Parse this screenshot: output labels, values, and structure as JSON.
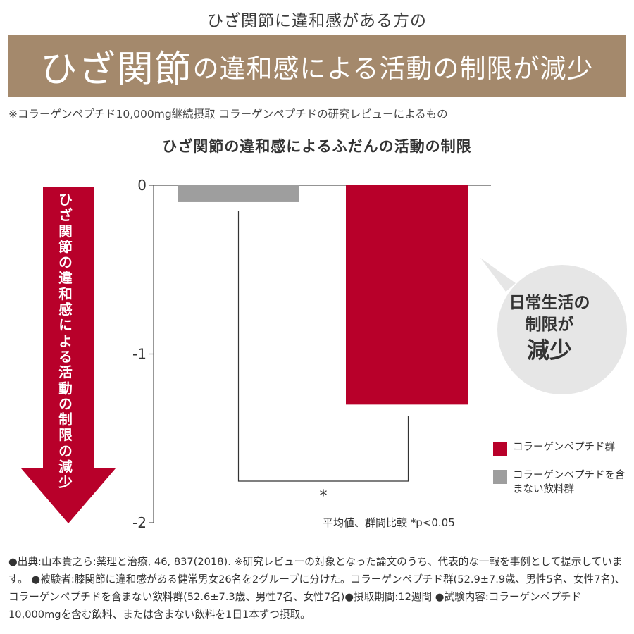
{
  "subheading": "ひざ関節に違和感がある方の",
  "banner": {
    "big_text": "ひざ関節",
    "rest_text": "の違和感による活動の制限が減少"
  },
  "note": "※コラーゲンペプチド10,000mg継続摂取 コラーゲンペプチドの研究レビューによるもの",
  "arrow_label": "ひざ関節の違和感による活動の制限の減少",
  "callout": {
    "line1": "日常生活の",
    "line2": "制限が",
    "line3": "減少"
  },
  "legend": [
    {
      "label": "コラーゲンペプチド群",
      "color": "#b8002a"
    },
    {
      "label": "コラーゲンペプチドを含まない飲料群",
      "color": "#9e9e9e"
    }
  ],
  "stat_note": "平均値、群間比較 *p<0.05",
  "footnote": "●出典:山本貴之ら:薬理と治療, 46, 837(2018). ※研究レビューの対象となった論文のうち、代表的な一報を事例として提示しています。 ●被験者:膝関節に違和感がある健常男女26名を2グループに分けた。コラーゲンペプチド群(52.9±7.9歳、男性5名、女性7名)、コラーゲンペプチドを含まない飲料群(52.6±7.3歳、男性7名、女性7名)●摂取期間:12週間 ●試験内容:コラーゲンペプチド10,000mgを含む飲料、または含まない飲料を1日1本ずつ摂取。",
  "colors": {
    "banner": "#a4896c",
    "accent_red": "#b8002a",
    "gray": "#9e9e9e",
    "callout_bg": "#e6e6e6"
  },
  "chart_data": {
    "type": "bar",
    "title": "ひざ関節の違和感によるふだんの活動の制限",
    "categories": [
      "コラーゲンペプチドを含まない飲料群",
      "コラーゲンペプチド群"
    ],
    "series": [
      {
        "name": "コラーゲンペプチドを含まない飲料群",
        "color": "#9e9e9e",
        "value": -0.1
      },
      {
        "name": "コラーゲンペプチド群",
        "color": "#b8002a",
        "value": -1.3
      }
    ],
    "ylim": [
      -2,
      0
    ],
    "yticks": [
      0,
      -1,
      -2
    ],
    "ytick_labels": [
      "0",
      "-1",
      "-2"
    ],
    "significance": "*",
    "grid": false
  }
}
